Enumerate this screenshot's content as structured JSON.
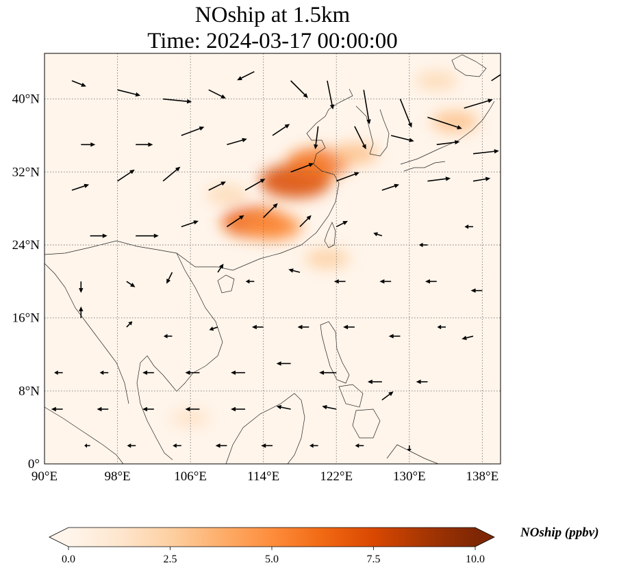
{
  "title": {
    "line1": "NOship at 1.5km",
    "line2": "Time: 2024-03-17 00:00:00"
  },
  "map": {
    "lon_range": [
      90,
      140
    ],
    "lat_range": [
      0,
      45
    ],
    "lon_ticks": [
      {
        "value": 90,
        "label": "90°E"
      },
      {
        "value": 98,
        "label": "98°E"
      },
      {
        "value": 106,
        "label": "106°E"
      },
      {
        "value": 114,
        "label": "114°E"
      },
      {
        "value": 122,
        "label": "122°E"
      },
      {
        "value": 130,
        "label": "130°E"
      },
      {
        "value": 138,
        "label": "138°E"
      }
    ],
    "lat_ticks": [
      {
        "value": 0,
        "label": "0°"
      },
      {
        "value": 8,
        "label": "8°N"
      },
      {
        "value": 16,
        "label": "16°N"
      },
      {
        "value": 24,
        "label": "24°N"
      },
      {
        "value": 32,
        "label": "32°N"
      },
      {
        "value": 40,
        "label": "40°N"
      }
    ],
    "gridlines": true,
    "hotspots": [
      {
        "lon": 117.5,
        "lat": 31.0,
        "value": 7.5
      },
      {
        "lon": 120.0,
        "lat": 33.0,
        "value": 6.0
      },
      {
        "lon": 113.0,
        "lat": 26.5,
        "value": 6.5
      },
      {
        "lon": 115.0,
        "lat": 26.0,
        "value": 5.0
      },
      {
        "lon": 124.0,
        "lat": 34.0,
        "value": 3.0
      },
      {
        "lon": 135.0,
        "lat": 37.5,
        "value": 3.0
      },
      {
        "lon": 133.0,
        "lat": 42.0,
        "value": 2.0
      },
      {
        "lon": 121.0,
        "lat": 22.5,
        "value": 2.5
      },
      {
        "lon": 110.0,
        "lat": 29.5,
        "value": 2.0
      },
      {
        "lon": 106.0,
        "lat": 5.0,
        "value": 1.5
      }
    ],
    "wind_vectors": [
      {
        "lon": 93,
        "lat": 42,
        "u": 5,
        "v": -2
      },
      {
        "lon": 98,
        "lat": 41,
        "u": 8,
        "v": -2
      },
      {
        "lon": 103,
        "lat": 40,
        "u": 10,
        "v": -1
      },
      {
        "lon": 108,
        "lat": 41,
        "u": 6,
        "v": -3
      },
      {
        "lon": 113,
        "lat": 43,
        "u": -6,
        "v": -3
      },
      {
        "lon": 117,
        "lat": 42,
        "u": 6,
        "v": -6
      },
      {
        "lon": 121,
        "lat": 42,
        "u": 2,
        "v": -10
      },
      {
        "lon": 125,
        "lat": 41,
        "u": 2,
        "v": -12
      },
      {
        "lon": 129,
        "lat": 40,
        "u": 4,
        "v": -10
      },
      {
        "lon": 132,
        "lat": 38,
        "u": 12,
        "v": -4
      },
      {
        "lon": 136,
        "lat": 39,
        "u": 10,
        "v": 3
      },
      {
        "lon": 139,
        "lat": 42,
        "u": 6,
        "v": 4
      },
      {
        "lon": 94,
        "lat": 35,
        "u": 5,
        "v": 0
      },
      {
        "lon": 100,
        "lat": 35,
        "u": 6,
        "v": 0
      },
      {
        "lon": 105,
        "lat": 36,
        "u": 8,
        "v": 3
      },
      {
        "lon": 110,
        "lat": 35,
        "u": 7,
        "v": 2
      },
      {
        "lon": 115,
        "lat": 36,
        "u": 6,
        "v": 4
      },
      {
        "lon": 120,
        "lat": 37,
        "u": -1,
        "v": -8
      },
      {
        "lon": 124,
        "lat": 37,
        "u": 4,
        "v": -8
      },
      {
        "lon": 128,
        "lat": 36,
        "u": 8,
        "v": -2
      },
      {
        "lon": 133,
        "lat": 35,
        "u": 8,
        "v": 1
      },
      {
        "lon": 137,
        "lat": 34,
        "u": 9,
        "v": 1
      },
      {
        "lon": 93,
        "lat": 30,
        "u": 6,
        "v": 2
      },
      {
        "lon": 98,
        "lat": 31,
        "u": 6,
        "v": 4
      },
      {
        "lon": 103,
        "lat": 31,
        "u": 6,
        "v": 5
      },
      {
        "lon": 108,
        "lat": 30,
        "u": 6,
        "v": 3
      },
      {
        "lon": 112,
        "lat": 30,
        "u": 7,
        "v": 4
      },
      {
        "lon": 117,
        "lat": 32,
        "u": 8,
        "v": 3
      },
      {
        "lon": 122,
        "lat": 31,
        "u": 8,
        "v": 3
      },
      {
        "lon": 127,
        "lat": 30,
        "u": 6,
        "v": 2
      },
      {
        "lon": 132,
        "lat": 31,
        "u": 8,
        "v": 1
      },
      {
        "lon": 137,
        "lat": 31,
        "u": 6,
        "v": 1
      },
      {
        "lon": 95,
        "lat": 25,
        "u": 6,
        "v": 0
      },
      {
        "lon": 100,
        "lat": 25,
        "u": 8,
        "v": 0
      },
      {
        "lon": 105,
        "lat": 26,
        "u": 6,
        "v": 2
      },
      {
        "lon": 110,
        "lat": 26,
        "u": 6,
        "v": 4
      },
      {
        "lon": 114,
        "lat": 27,
        "u": 5,
        "v": 5
      },
      {
        "lon": 118,
        "lat": 26,
        "u": 4,
        "v": 4
      },
      {
        "lon": 122,
        "lat": 26,
        "u": 4,
        "v": 2
      },
      {
        "lon": 127,
        "lat": 25,
        "u": -3,
        "v": 1
      },
      {
        "lon": 132,
        "lat": 24,
        "u": -3,
        "v": 0
      },
      {
        "lon": 137,
        "lat": 26,
        "u": -3,
        "v": 0
      },
      {
        "lon": 94,
        "lat": 20,
        "u": 0,
        "v": -4
      },
      {
        "lon": 99,
        "lat": 20,
        "u": 3,
        "v": -2
      },
      {
        "lon": 104,
        "lat": 21,
        "u": -2,
        "v": -4
      },
      {
        "lon": 109,
        "lat": 21,
        "u": 2,
        "v": 3
      },
      {
        "lon": 113,
        "lat": 20,
        "u": -3,
        "v": 0
      },
      {
        "lon": 118,
        "lat": 21,
        "u": -4,
        "v": 1
      },
      {
        "lon": 123,
        "lat": 20,
        "u": -4,
        "v": 0
      },
      {
        "lon": 128,
        "lat": 20,
        "u": -4,
        "v": 0
      },
      {
        "lon": 133,
        "lat": 20,
        "u": -4,
        "v": 0
      },
      {
        "lon": 138,
        "lat": 19,
        "u": -4,
        "v": 0
      },
      {
        "lon": 94,
        "lat": 16,
        "u": 0,
        "v": 4
      },
      {
        "lon": 99,
        "lat": 15,
        "u": 2,
        "v": 2
      },
      {
        "lon": 104,
        "lat": 14,
        "u": -3,
        "v": 0
      },
      {
        "lon": 109,
        "lat": 15,
        "u": -3,
        "v": -1
      },
      {
        "lon": 114,
        "lat": 15,
        "u": -4,
        "v": 0
      },
      {
        "lon": 119,
        "lat": 15,
        "u": -4,
        "v": 0
      },
      {
        "lon": 124,
        "lat": 15,
        "u": -4,
        "v": 0
      },
      {
        "lon": 129,
        "lat": 14,
        "u": -4,
        "v": 0
      },
      {
        "lon": 134,
        "lat": 15,
        "u": -3,
        "v": 0
      },
      {
        "lon": 137,
        "lat": 14,
        "u": -4,
        "v": -1
      },
      {
        "lon": 92,
        "lat": 10,
        "u": -3,
        "v": 0
      },
      {
        "lon": 97,
        "lat": 10,
        "u": -3,
        "v": 0
      },
      {
        "lon": 102,
        "lat": 10,
        "u": -4,
        "v": 0
      },
      {
        "lon": 107,
        "lat": 10,
        "u": -5,
        "v": 0
      },
      {
        "lon": 112,
        "lat": 10,
        "u": -5,
        "v": 0
      },
      {
        "lon": 117,
        "lat": 11,
        "u": -5,
        "v": 0
      },
      {
        "lon": 122,
        "lat": 10,
        "u": -6,
        "v": 0
      },
      {
        "lon": 127,
        "lat": 9,
        "u": -5,
        "v": 0
      },
      {
        "lon": 132,
        "lat": 9,
        "u": -4,
        "v": 0
      },
      {
        "lon": 92,
        "lat": 6,
        "u": -4,
        "v": 0
      },
      {
        "lon": 97,
        "lat": 6,
        "u": -4,
        "v": 0
      },
      {
        "lon": 102,
        "lat": 6,
        "u": -4,
        "v": 0
      },
      {
        "lon": 107,
        "lat": 6,
        "u": -5,
        "v": 0
      },
      {
        "lon": 112,
        "lat": 6,
        "u": -5,
        "v": 0
      },
      {
        "lon": 117,
        "lat": 6,
        "u": -5,
        "v": 1
      },
      {
        "lon": 122,
        "lat": 6,
        "u": -5,
        "v": 1
      },
      {
        "lon": 127,
        "lat": 7,
        "u": 4,
        "v": 3
      },
      {
        "lon": 95,
        "lat": 2,
        "u": -2,
        "v": 0
      },
      {
        "lon": 100,
        "lat": 2,
        "u": -3,
        "v": 0
      },
      {
        "lon": 105,
        "lat": 2,
        "u": -3,
        "v": 0
      },
      {
        "lon": 110,
        "lat": 2,
        "u": -4,
        "v": 0
      },
      {
        "lon": 115,
        "lat": 2,
        "u": -4,
        "v": 0
      },
      {
        "lon": 120,
        "lat": 2,
        "u": -3,
        "v": 0
      },
      {
        "lon": 125,
        "lat": 2,
        "u": -3,
        "v": 0
      },
      {
        "lon": 130,
        "lat": 2,
        "u": 0,
        "v": -2
      }
    ]
  },
  "colorbar": {
    "label": "NOship (ppbv)",
    "min": 0,
    "max": 10,
    "ticks": [
      {
        "value": 0,
        "label": "0.0"
      },
      {
        "value": 2.5,
        "label": "2.5"
      },
      {
        "value": 5.0,
        "label": "5.0"
      },
      {
        "value": 7.5,
        "label": "7.5"
      },
      {
        "value": 10.0,
        "label": "10.0"
      }
    ],
    "colors": [
      "#fff5eb",
      "#fee6ce",
      "#fdd0a2",
      "#fdae6b",
      "#fd8d3c",
      "#f16913",
      "#d94801",
      "#a63603",
      "#7f2704"
    ]
  }
}
